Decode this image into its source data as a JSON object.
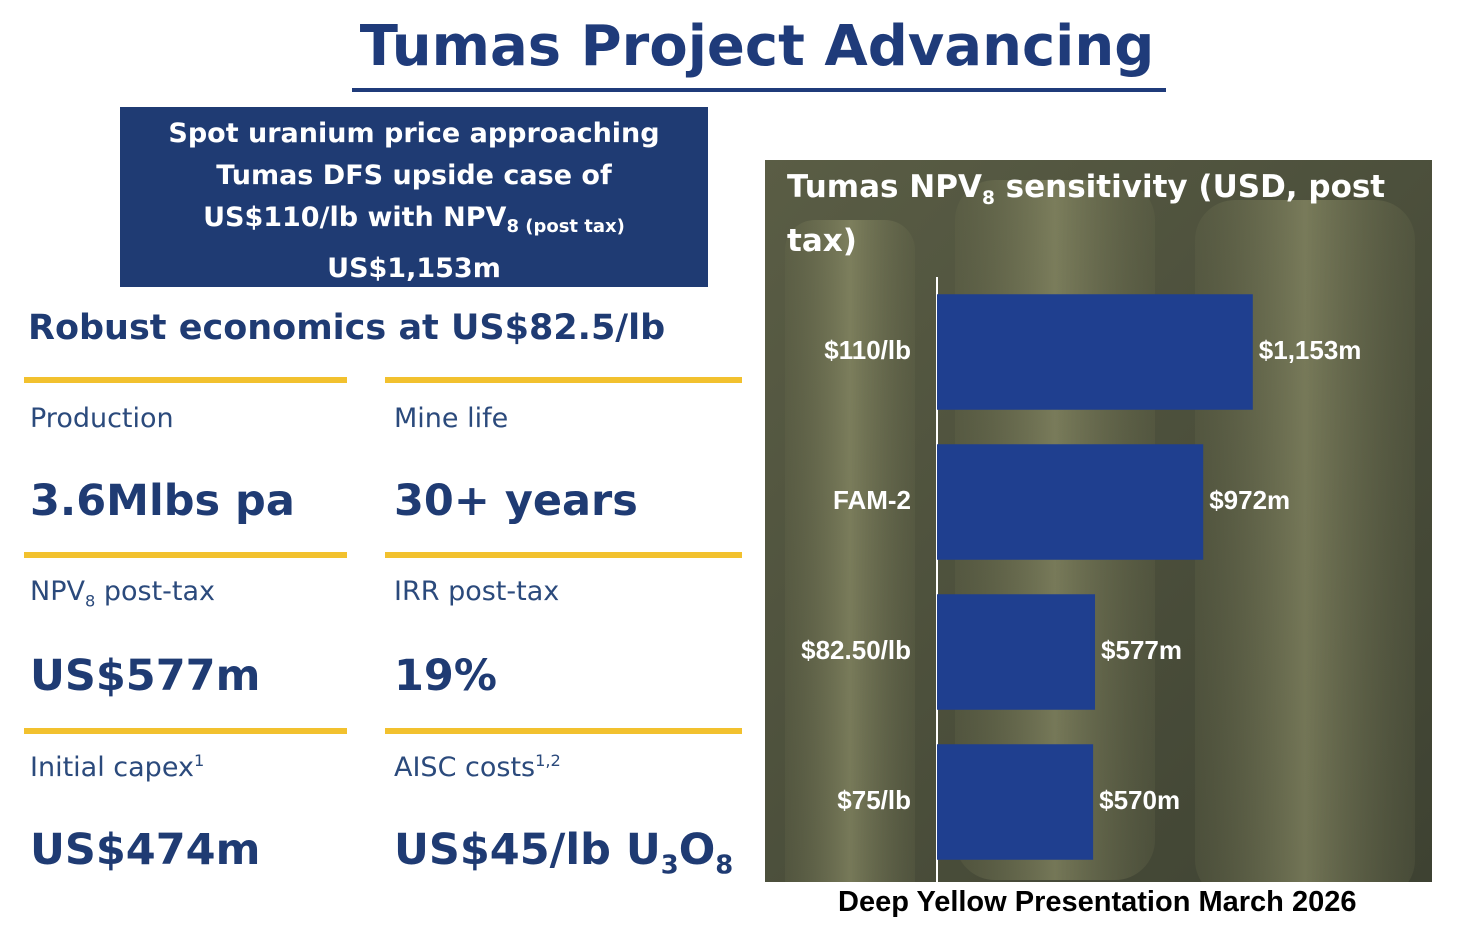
{
  "header": {
    "title": "Tumas Project Advancing"
  },
  "callout": {
    "line1": "Spot uranium price approaching",
    "line2": "Tumas DFS upside case of",
    "line3": "US$110/lb with NPV",
    "line3_sub": "8 (post tax)",
    "line4": "US$1,153m"
  },
  "economics": {
    "heading": "Robust economics at US$82.5/lb",
    "items": [
      {
        "label": [
          "Production"
        ],
        "value": [
          "3.6Mlbs pa"
        ]
      },
      {
        "label": [
          "Mine life"
        ],
        "value": [
          "30+ years"
        ]
      },
      {
        "label": [
          "NPV",
          "8",
          " post-tax"
        ],
        "value": [
          "US$577m"
        ]
      },
      {
        "label": [
          "IRR post-tax"
        ],
        "value": [
          "19%"
        ]
      },
      {
        "label": [
          "Initial capex",
          "1"
        ],
        "value": [
          "US$474m"
        ]
      },
      {
        "label": [
          "AISC costs",
          "1,2"
        ],
        "value": [
          "US$45/lb U",
          "3",
          "O",
          "8"
        ]
      }
    ]
  },
  "chart_data": {
    "type": "bar",
    "title": "Tumas NPV",
    "title_sub": "8",
    "title_rest": " sensitivity (USD, post tax)",
    "categories": [
      "$110/lb",
      "FAM-2",
      "$82.50/lb",
      "$75/lb"
    ],
    "values": [
      1153,
      972,
      577,
      570
    ],
    "value_labels": [
      "$1,153m",
      "$972m",
      "$577m",
      "$570m"
    ],
    "color": "#1f3f8f",
    "xlim": [
      0,
      1800
    ]
  },
  "footer": {
    "source": "Deep Yellow Presentation March 2026"
  }
}
